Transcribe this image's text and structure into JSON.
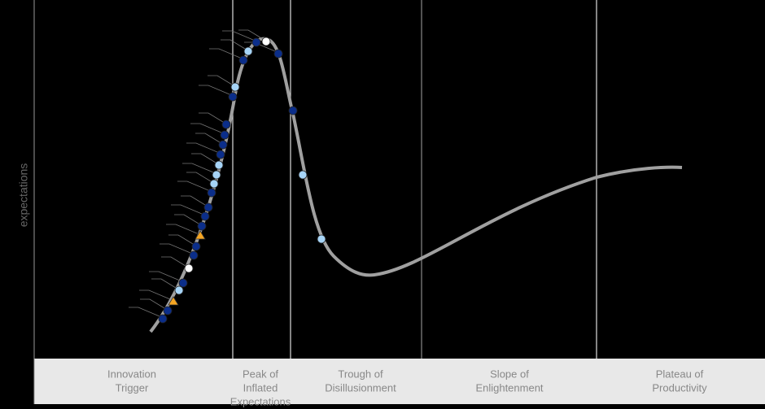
{
  "y_axis_label": "expectations",
  "phases": [
    {
      "lines": [
        "Innovation",
        "Trigger"
      ]
    },
    {
      "lines": [
        "Peak of",
        "Inflated",
        "Expectations"
      ]
    },
    {
      "lines": [
        "Trough of",
        "Disillusionment"
      ]
    },
    {
      "lines": [
        "Slope of",
        "Enlightenment"
      ]
    },
    {
      "lines": [
        "Plateau of",
        "Productivity"
      ]
    }
  ]
}
